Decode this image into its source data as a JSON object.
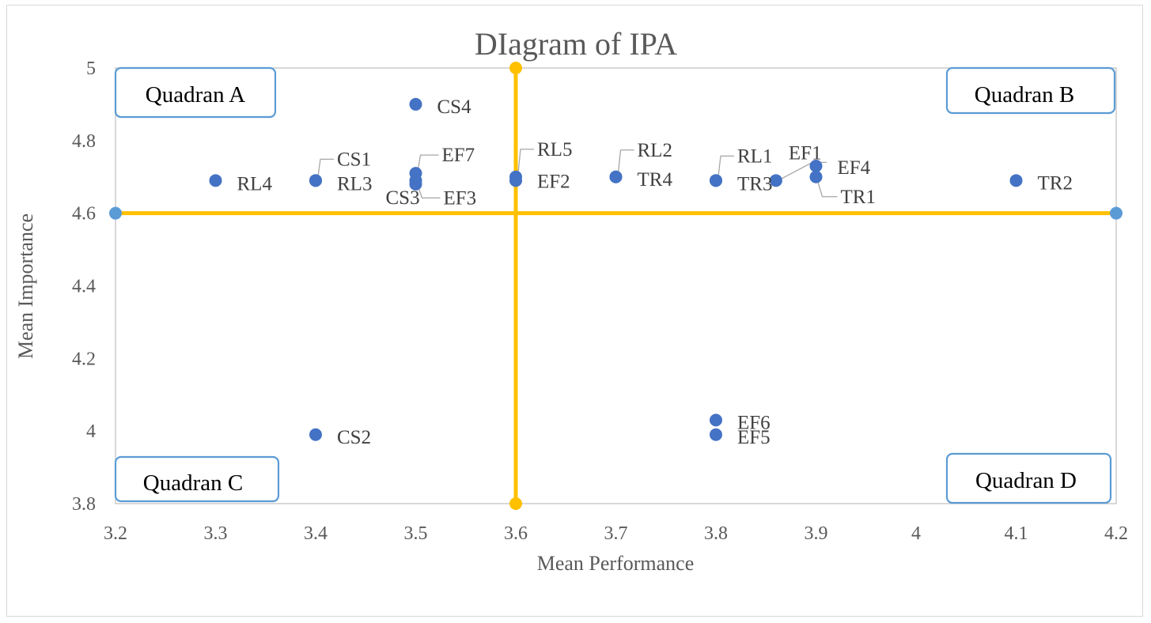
{
  "chart_data": {
    "type": "scatter",
    "title": "DIagram of IPA",
    "xlabel": "Mean Performance",
    "ylabel": "Mean Importance",
    "xlim": [
      3.2,
      4.2
    ],
    "ylim": [
      3.8,
      5
    ],
    "x_ticks": [
      "3.2",
      "3.3",
      "3.4",
      "3.5",
      "3.6",
      "3.7",
      "3.8",
      "3.9",
      "4",
      "4.1",
      "4.2"
    ],
    "y_ticks": [
      "3.8",
      "4",
      "4.2",
      "4.4",
      "4.6",
      "4.8",
      "5"
    ],
    "grid": false,
    "marker_color": "#4472c4",
    "reference_line_color": "#ffc000",
    "reference_endpoint_color": "#5b9bd5",
    "reference_lines": {
      "vertical_x": 3.6,
      "horizontal_y": 4.6
    },
    "points": [
      {
        "label": "CS1",
        "x": 3.4,
        "y": 4.69
      },
      {
        "label": "CS2",
        "x": 3.4,
        "y": 3.99
      },
      {
        "label": "CS3",
        "x": 3.5,
        "y": 4.68
      },
      {
        "label": "CS4",
        "x": 3.5,
        "y": 4.9
      },
      {
        "label": "RL1",
        "x": 3.8,
        "y": 4.69
      },
      {
        "label": "RL2",
        "x": 3.7,
        "y": 4.7
      },
      {
        "label": "RL3",
        "x": 3.4,
        "y": 4.69
      },
      {
        "label": "RL4",
        "x": 3.3,
        "y": 4.69
      },
      {
        "label": "RL5",
        "x": 3.6,
        "y": 4.7
      },
      {
        "label": "EF1",
        "x": 3.86,
        "y": 4.69
      },
      {
        "label": "EF2",
        "x": 3.6,
        "y": 4.69
      },
      {
        "label": "EF3",
        "x": 3.5,
        "y": 4.69
      },
      {
        "label": "EF4",
        "x": 3.9,
        "y": 4.73
      },
      {
        "label": "EF5",
        "x": 3.8,
        "y": 3.99
      },
      {
        "label": "EF6",
        "x": 3.8,
        "y": 4.03
      },
      {
        "label": "EF7",
        "x": 3.5,
        "y": 4.71
      },
      {
        "label": "TR1",
        "x": 3.9,
        "y": 4.7
      },
      {
        "label": "TR2",
        "x": 4.1,
        "y": 4.69
      },
      {
        "label": "TR3",
        "x": 3.8,
        "y": 4.69
      },
      {
        "label": "TR4",
        "x": 3.7,
        "y": 4.7
      }
    ],
    "quadrants": {
      "a": "Quadran A",
      "b": "Quadran B",
      "c": "Quadran C",
      "d": "Quadran D"
    }
  }
}
